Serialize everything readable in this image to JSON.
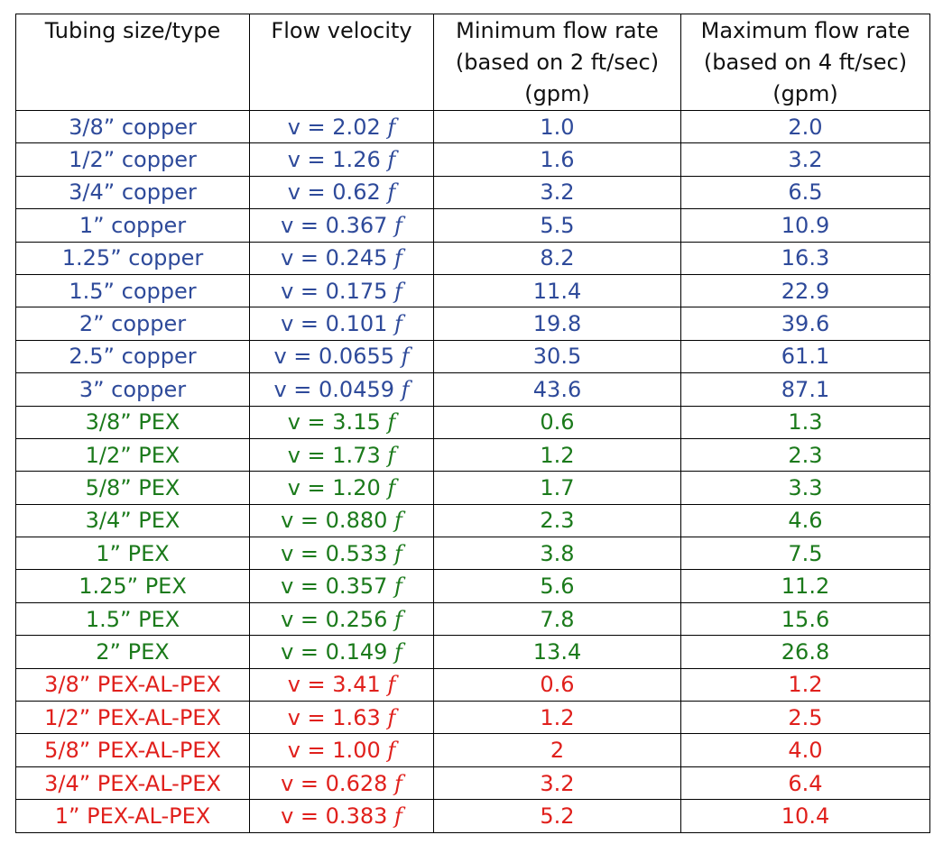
{
  "headers": {
    "col1": [
      "Tubing size/type"
    ],
    "col2": [
      "Flow velocity"
    ],
    "col3": [
      "Minimum flow rate",
      "(based on 2 ft/sec)",
      "(gpm)"
    ],
    "col4": [
      "Maximum flow rate",
      "(based on 4 ft/sec)",
      "(gpm)"
    ]
  },
  "colors": {
    "copper": "#2e4a9a",
    "pex": "#1b7a1b",
    "pex_al_pex": "#e0201c"
  },
  "rows": [
    {
      "group": "copper",
      "tubing": "3/8” copper",
      "velocity": "v = 2.02",
      "factor": "f",
      "min": "1.0",
      "max": "2.0"
    },
    {
      "group": "copper",
      "tubing": "1/2” copper",
      "velocity": "v = 1.26",
      "factor": "f",
      "min": "1.6",
      "max": "3.2"
    },
    {
      "group": "copper",
      "tubing": "3/4” copper",
      "velocity": "v = 0.62",
      "factor": "f",
      "min": "3.2",
      "max": "6.5"
    },
    {
      "group": "copper",
      "tubing": "1” copper",
      "velocity": "v = 0.367",
      "factor": "f",
      "min": "5.5",
      "max": "10.9"
    },
    {
      "group": "copper",
      "tubing": "1.25” copper",
      "velocity": "v = 0.245",
      "factor": "f",
      "min": "8.2",
      "max": "16.3"
    },
    {
      "group": "copper",
      "tubing": "1.5” copper",
      "velocity": "v = 0.175",
      "factor": "f",
      "min": "11.4",
      "max": "22.9"
    },
    {
      "group": "copper",
      "tubing": "2” copper",
      "velocity": "v = 0.101",
      "factor": "f",
      "min": "19.8",
      "max": "39.6"
    },
    {
      "group": "copper",
      "tubing": "2.5” copper",
      "velocity": "v = 0.0655",
      "factor": "f",
      "min": "30.5",
      "max": "61.1"
    },
    {
      "group": "copper",
      "tubing": "3” copper",
      "velocity": "v = 0.0459",
      "factor": "f",
      "min": "43.6",
      "max": "87.1"
    },
    {
      "group": "pex",
      "tubing": "3/8” PEX",
      "velocity": "v = 3.15",
      "factor": "f",
      "min": "0.6",
      "max": "1.3"
    },
    {
      "group": "pex",
      "tubing": "1/2” PEX",
      "velocity": "v = 1.73",
      "factor": "f",
      "min": "1.2",
      "max": "2.3"
    },
    {
      "group": "pex",
      "tubing": "5/8” PEX",
      "velocity": "v = 1.20",
      "factor": "f",
      "min": "1.7",
      "max": "3.3"
    },
    {
      "group": "pex",
      "tubing": "3/4” PEX",
      "velocity": "v = 0.880",
      "factor": "f",
      "min": "2.3",
      "max": "4.6"
    },
    {
      "group": "pex",
      "tubing": "1” PEX",
      "velocity": "v = 0.533",
      "factor": "f",
      "min": "3.8",
      "max": "7.5"
    },
    {
      "group": "pex",
      "tubing": "1.25” PEX",
      "velocity": "v = 0.357",
      "factor": "f",
      "min": "5.6",
      "max": "11.2"
    },
    {
      "group": "pex",
      "tubing": "1.5” PEX",
      "velocity": "v = 0.256",
      "factor": "f",
      "min": "7.8",
      "max": "15.6"
    },
    {
      "group": "pex",
      "tubing": "2” PEX",
      "velocity": "v = 0.149",
      "factor": "f",
      "min": "13.4",
      "max": "26.8"
    },
    {
      "group": "pexal",
      "tubing": "3/8” PEX-AL-PEX",
      "velocity": "v = 3.41",
      "factor": "f",
      "min": "0.6",
      "max": "1.2"
    },
    {
      "group": "pexal",
      "tubing": "1/2” PEX-AL-PEX",
      "velocity": "v = 1.63",
      "factor": "f",
      "min": "1.2",
      "max": "2.5"
    },
    {
      "group": "pexal",
      "tubing": "5/8” PEX-AL-PEX",
      "velocity": "v = 1.00",
      "factor": "f",
      "min": "2",
      "max": "4.0"
    },
    {
      "group": "pexal",
      "tubing": "3/4” PEX-AL-PEX",
      "velocity": "v = 0.628",
      "factor": "f",
      "min": "3.2",
      "max": "6.4"
    },
    {
      "group": "pexal",
      "tubing": "1” PEX-AL-PEX",
      "velocity": "v = 0.383",
      "factor": "f",
      "min": "5.2",
      "max": "10.4"
    }
  ]
}
